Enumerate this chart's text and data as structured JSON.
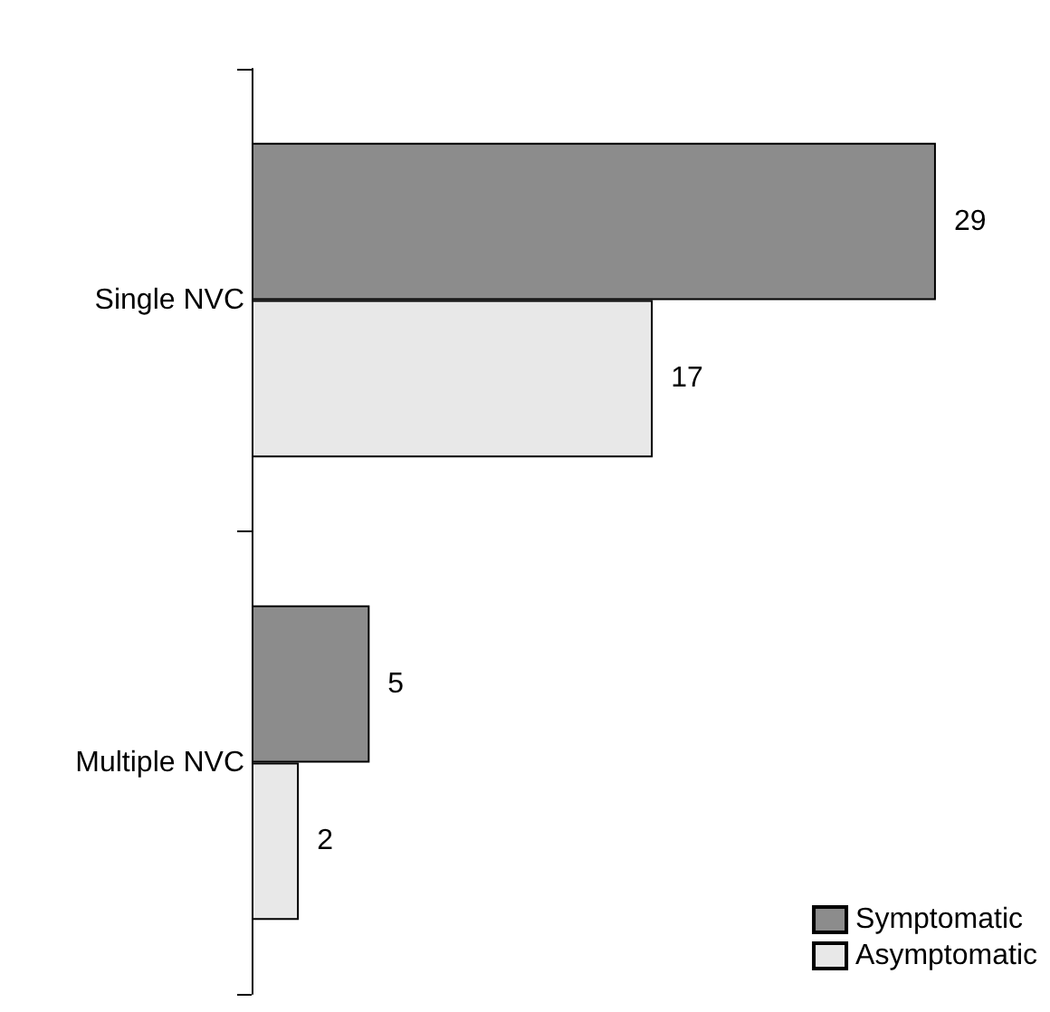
{
  "chart_data": {
    "type": "bar",
    "orientation": "horizontal",
    "categories": [
      "Single NVC",
      "Multiple NVC"
    ],
    "series": [
      {
        "name": "Symptomatic",
        "color": "#8c8c8c",
        "values": [
          29,
          5
        ]
      },
      {
        "name": "Asymptomatic",
        "color": "#e8e8e8",
        "values": [
          17,
          2
        ]
      }
    ],
    "data_labels": true,
    "legend": "bottom right"
  }
}
